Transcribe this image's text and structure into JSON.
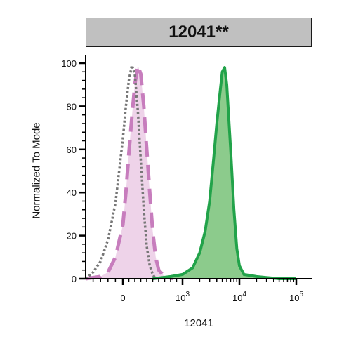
{
  "chart_data": {
    "type": "area",
    "title": "12041**",
    "xlabel": "12041",
    "ylabel": "Normalized To Mode",
    "x_scale": "biexponential",
    "y_ticks": [
      "0",
      "20",
      "40",
      "60",
      "80",
      "100"
    ],
    "y_tick_values": [
      0,
      20,
      40,
      60,
      80,
      100
    ],
    "ylim": [
      0,
      100
    ],
    "x_ticks": [
      {
        "value": 0,
        "base": "0",
        "exp": ""
      },
      {
        "value": 1000,
        "base": "10",
        "exp": "3"
      },
      {
        "value": 10000,
        "base": "10",
        "exp": "4"
      },
      {
        "value": 100000,
        "base": "10",
        "exp": "5"
      }
    ],
    "grid": false,
    "series": [
      {
        "style": "dotted",
        "color": "#777777",
        "fill": "none",
        "x": [
          -500,
          -400,
          -300,
          -200,
          -100,
          -50,
          0,
          50,
          100,
          150,
          200,
          250,
          300,
          350,
          400,
          450,
          500,
          550
        ],
        "y": [
          0,
          3,
          8,
          18,
          35,
          50,
          65,
          80,
          92,
          99,
          95,
          78,
          55,
          32,
          15,
          6,
          2,
          0
        ]
      },
      {
        "style": "dashed",
        "color": "#c77dbd",
        "fill": "#eed3e9",
        "x": [
          -500,
          -300,
          -200,
          -100,
          0,
          50,
          100,
          150,
          200,
          250,
          300,
          350,
          400,
          450,
          500,
          550,
          600,
          700,
          850
        ],
        "y": [
          0,
          1,
          3,
          10,
          25,
          40,
          58,
          75,
          90,
          99,
          95,
          80,
          60,
          40,
          22,
          10,
          4,
          1,
          0
        ]
      },
      {
        "style": "solid",
        "color": "#22a34a",
        "fill": "#8ccb8c",
        "x": [
          500,
          800,
          1000,
          1500,
          2000,
          2500,
          3000,
          3500,
          4000,
          4500,
          5000,
          5500,
          6000,
          7000,
          8000,
          9000,
          10000,
          12000,
          20000,
          50000,
          100000
        ],
        "y": [
          0,
          1,
          2,
          5,
          12,
          22,
          36,
          55,
          72,
          85,
          96,
          98,
          90,
          60,
          32,
          14,
          6,
          2,
          1,
          0,
          0
        ]
      }
    ]
  }
}
